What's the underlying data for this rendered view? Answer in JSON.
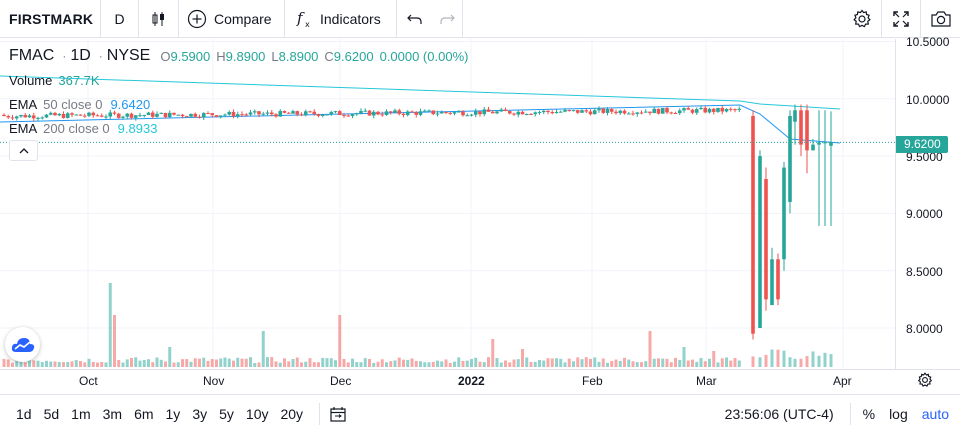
{
  "toolbar": {
    "symbol": "FIRSTMARK",
    "interval": "D",
    "compare_label": "Compare",
    "indicators_label": "Indicators",
    "icons": [
      "candles-icon",
      "plus-circle-icon",
      "fx-icon",
      "undo-icon",
      "redo-icon",
      "gear-icon",
      "fullscreen-icon",
      "camera-icon"
    ]
  },
  "legend": {
    "ticker": "FMAC",
    "interval": "1D",
    "exchange": "NYSE",
    "open_label": "O",
    "open": "9.5900",
    "high_label": "H",
    "high": "9.8900",
    "low_label": "L",
    "low": "8.8900",
    "close_label": "C",
    "close": "9.6200",
    "change": "0.0000 (0.00%)",
    "volume_title": "Volume",
    "volume_value": "367.7K",
    "ema50_title": "EMA",
    "ema50_params": "50 close 0",
    "ema50_value": "9.6420",
    "ema200_title": "EMA",
    "ema200_params": "200 close 0",
    "ema200_value": "9.8933"
  },
  "price_axis": {
    "labels": [
      "10.5000",
      "10.0000",
      "9.5000",
      "9.0000",
      "8.5000",
      "8.0000"
    ],
    "current_price": "9.6200"
  },
  "time_axis": {
    "labels": [
      "Oct",
      "Nov",
      "Dec",
      "2022",
      "Feb",
      "Mar",
      "Apr"
    ]
  },
  "bottom": {
    "ranges": [
      "1d",
      "5d",
      "1m",
      "3m",
      "6m",
      "1y",
      "3y",
      "5y",
      "10y",
      "20y"
    ],
    "time": "23:56:06 (UTC-4)",
    "percent": "%",
    "log": "log",
    "auto": "auto"
  },
  "colors": {
    "up": "#26a69a",
    "down": "#ef5350",
    "ema50": "#2196f3",
    "ema200": "#26c6da",
    "accent": "#2962ff"
  },
  "chart_data": {
    "type": "candlestick",
    "title": "FMAC 1D NYSE",
    "ylim": [
      7.7,
      10.55
    ],
    "x_range": [
      "2021-09-21",
      "2022-04-06"
    ],
    "last_price": 9.62,
    "series": [
      {
        "name": "EMA 50 close 0",
        "last": 9.642
      },
      {
        "name": "EMA 200 close 0",
        "last": 9.8933
      }
    ],
    "candles_sample": [
      {
        "date": "2022-03-11",
        "o": 9.85,
        "h": 9.9,
        "l": 7.9,
        "c": 7.95
      },
      {
        "date": "2022-03-14",
        "o": 8.0,
        "h": 9.55,
        "l": 8.0,
        "c": 9.5
      },
      {
        "date": "2022-03-15",
        "o": 9.3,
        "h": 9.4,
        "l": 8.15,
        "c": 8.25
      },
      {
        "date": "2022-03-16",
        "o": 8.2,
        "h": 8.7,
        "l": 8.2,
        "c": 8.6
      },
      {
        "date": "2022-03-18",
        "o": 8.6,
        "h": 9.45,
        "l": 8.5,
        "c": 9.4
      },
      {
        "date": "2022-03-21",
        "o": 9.1,
        "h": 9.9,
        "l": 9.0,
        "c": 9.85
      },
      {
        "date": "2022-03-24",
        "o": 9.9,
        "h": 9.95,
        "l": 9.35,
        "c": 9.55
      },
      {
        "date": "2022-03-28",
        "o": 9.59,
        "h": 9.89,
        "l": 8.89,
        "c": 9.62
      }
    ],
    "volume_spike_dates": [
      "2021-10-07",
      "2021-11-05",
      "2021-12-01",
      "2022-03-03",
      "2022-03-18"
    ]
  }
}
